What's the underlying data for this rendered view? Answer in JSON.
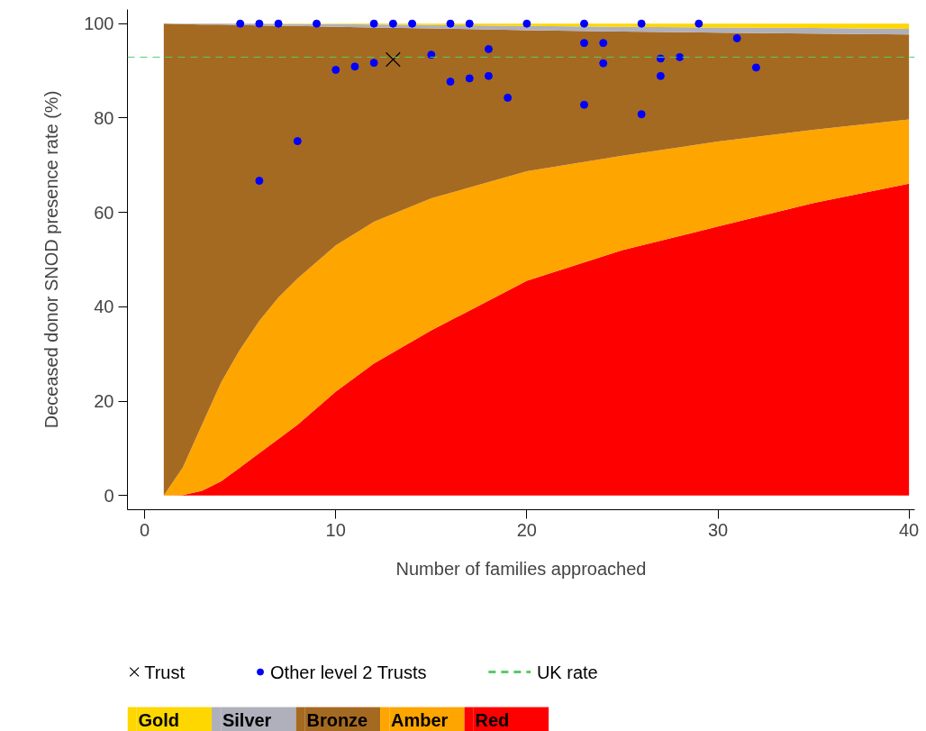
{
  "chart_data": {
    "type": "area",
    "stacked": true,
    "xlabel": "Number of families approached",
    "ylabel": "Deceased donor SNOD presence rate (%)",
    "xlim": [
      -0.9,
      40.3
    ],
    "ylim": [
      -3,
      103
    ],
    "xticks": [
      0,
      10,
      20,
      30,
      40
    ],
    "yticks": [
      0,
      20,
      40,
      60,
      80,
      100
    ],
    "grid": false,
    "legend": "bottom",
    "x": [
      1,
      2,
      3,
      4,
      5,
      6,
      7,
      8,
      10,
      12,
      15,
      20,
      25,
      30,
      35,
      40
    ],
    "series": [
      {
        "name": "Red",
        "color": "#ff0000",
        "values": [
          0,
          0.1,
          1,
          3,
          6,
          9,
          12,
          15,
          22,
          28,
          35,
          45.5,
          52,
          57,
          62,
          66.1
        ]
      },
      {
        "name": "Amber",
        "color": "#ffa500",
        "values": [
          0,
          5.9,
          14,
          21,
          25,
          28,
          30,
          31,
          31,
          30,
          28,
          23.2,
          20,
          18,
          15.5,
          13.6
        ]
      },
      {
        "name": "Bronze",
        "color": "#a56a22",
        "values": [
          100,
          93.9,
          84.8,
          75.8,
          68.7,
          62.6,
          57.5,
          53.5,
          46.3,
          41.2,
          36.0,
          29.9,
          26.3,
          23.1,
          20.4,
          18.0
        ]
      },
      {
        "name": "Silver",
        "color": "#b0b0bc",
        "values": [
          0,
          0.1,
          0.2,
          0.2,
          0.3,
          0.4,
          0.4,
          0.4,
          0.6,
          0.6,
          0.7,
          0.9,
          1.0,
          1.1,
          1.2,
          1.2
        ]
      },
      {
        "name": "Gold",
        "color": "#ffd700",
        "values": [
          0,
          0,
          0,
          0,
          0,
          0,
          0.1,
          0.1,
          0.1,
          0.2,
          0.3,
          0.5,
          0.7,
          0.8,
          0.9,
          1.1
        ]
      },
      {
        "name": "Other level 2 Trusts",
        "type": "scatter",
        "marker": "circle",
        "color": "#0000ff",
        "x": [
          5,
          6,
          7,
          9,
          12,
          13,
          14,
          16,
          17,
          20,
          23,
          26,
          29,
          18,
          15,
          10,
          11,
          12,
          16,
          17,
          18,
          19,
          8,
          6,
          23,
          24,
          24,
          23,
          26,
          27,
          27,
          28,
          31,
          32
        ],
        "values": [
          100,
          100,
          100,
          100,
          100,
          100,
          100,
          100,
          100,
          100,
          100,
          100,
          100,
          94.6,
          93.4,
          90.2,
          90.9,
          91.7,
          87.7,
          88.4,
          88.9,
          84.3,
          75.1,
          66.7,
          95.9,
          95.9,
          91.6,
          82.8,
          80.8,
          92.6,
          88.9,
          92.9,
          96.9,
          90.7
        ]
      },
      {
        "name": "Trust",
        "type": "scatter",
        "marker": "cross",
        "color": "#000000",
        "x": [
          13
        ],
        "values": [
          92.4
        ]
      }
    ],
    "ref_lines": [
      {
        "axis": "y",
        "value": 92.9,
        "label": "UK rate",
        "color": "#55cc66",
        "line_style": "dashed"
      }
    ]
  }
}
